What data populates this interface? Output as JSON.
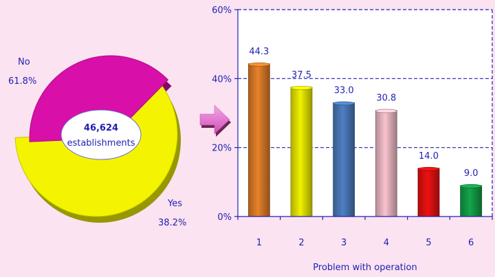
{
  "chart_data": [
    {
      "type": "pie",
      "center_label": {
        "line1": "46,624",
        "line2": "establishments"
      },
      "slices": [
        {
          "name": "No",
          "label": "No",
          "pct_label": "61.8%",
          "value": 61.8,
          "color": "#f4f400"
        },
        {
          "name": "Yes",
          "label": "Yes",
          "pct_label": "38.2%",
          "value": 38.2,
          "color": "#d80fa8"
        }
      ]
    },
    {
      "type": "bar",
      "xlabel": "Problem with operation",
      "ylabel": "",
      "categories": [
        "1",
        "2",
        "3",
        "4",
        "5",
        "6"
      ],
      "values": [
        44.3,
        37.5,
        33.0,
        30.8,
        14.0,
        9.0
      ],
      "value_labels": [
        "44.3",
        "37.5",
        "33.0",
        "30.8",
        "14.0",
        "9.0"
      ],
      "colors": [
        "#e8822a",
        "#f2f200",
        "#4f7fc4",
        "#f9c3cf",
        "#ee1111",
        "#14a54a"
      ],
      "ylim": [
        0,
        60
      ],
      "yticks": [
        0,
        20,
        40,
        60
      ],
      "ytick_labels": [
        "0%",
        "20%",
        "40%",
        "60%"
      ],
      "grid": true
    }
  ]
}
